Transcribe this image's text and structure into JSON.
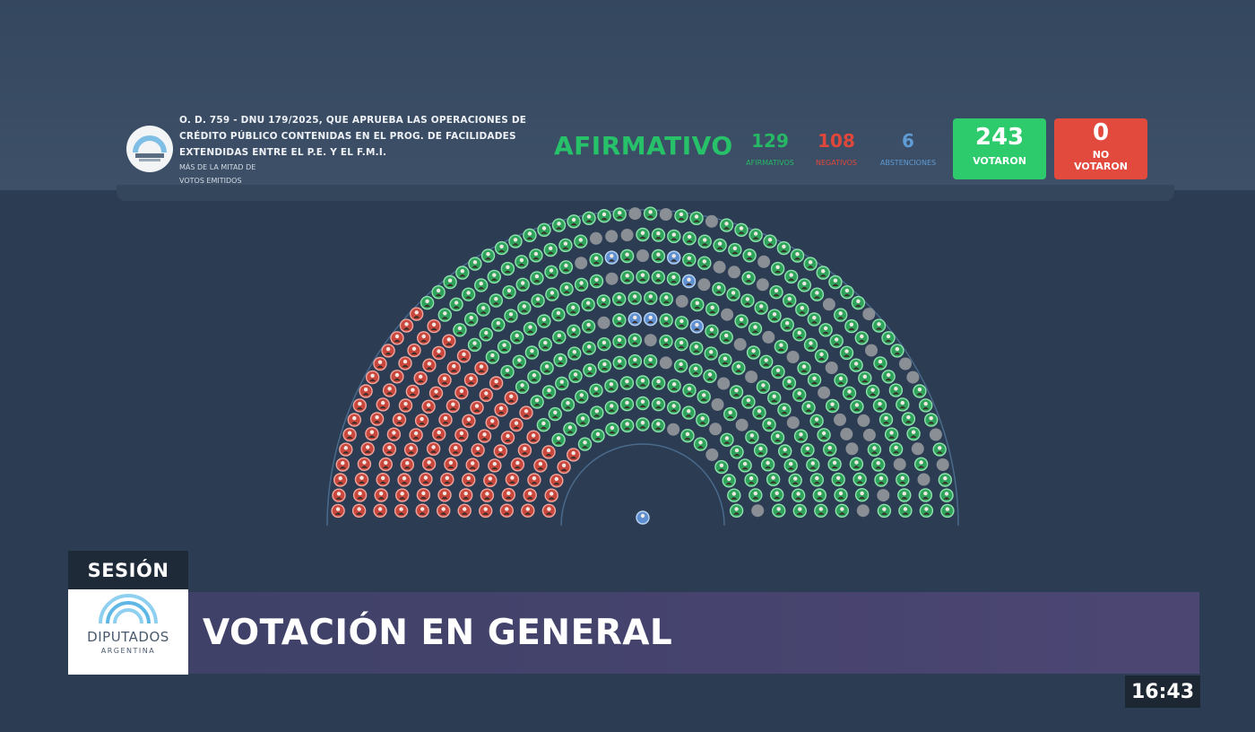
{
  "header": {
    "title_lines": [
      "O. D. 759 - DNU 179/2025, QUE APRUEBA LAS OPERACIONES DE",
      "CRÉDITO PÚBLICO CONTENIDAS EN EL PROG. DE FACILIDADES",
      "EXTENDIDAS ENTRE EL P.E. Y EL F.M.I."
    ],
    "majority_lines": [
      "MÁS DE LA MITAD DE",
      "VOTOS EMITIDOS"
    ],
    "result": "AFIRMATIVO",
    "stats": {
      "affirmative": {
        "value": "129",
        "label": "AFIRMATIVOS"
      },
      "negative": {
        "value": "108",
        "label": "NEGATIVOS"
      },
      "abstention": {
        "value": "6",
        "label": "ABSTENCIONES"
      }
    },
    "voted": {
      "value": "243",
      "label": "VOTARON"
    },
    "not_voted": {
      "value": "0",
      "label_lines": [
        "NO",
        "VOTARON"
      ]
    }
  },
  "chamber": {
    "seat_counts": {
      "affirmative": 129,
      "negative": 108,
      "abstention": 6
    },
    "colors": {
      "affirmative": "#2fa35c",
      "negative": "#c9473d",
      "abstention": "#5e8fd0",
      "absent": "#8a8f96",
      "president": "#5e8fd0"
    }
  },
  "lower_third": {
    "tag": "SESIÓN",
    "logo_name": "DIPUTADOS",
    "logo_country": "ARGENTINA",
    "headline": "VOTACIÓN EN GENERAL"
  },
  "clock": "16:43",
  "colors": {
    "background": "#2c3c52",
    "header": "#3d5068",
    "affirmative": "#27c16a",
    "negative": "#e0473b",
    "abstention": "#5f9bd4",
    "banner": "#463f6e"
  }
}
